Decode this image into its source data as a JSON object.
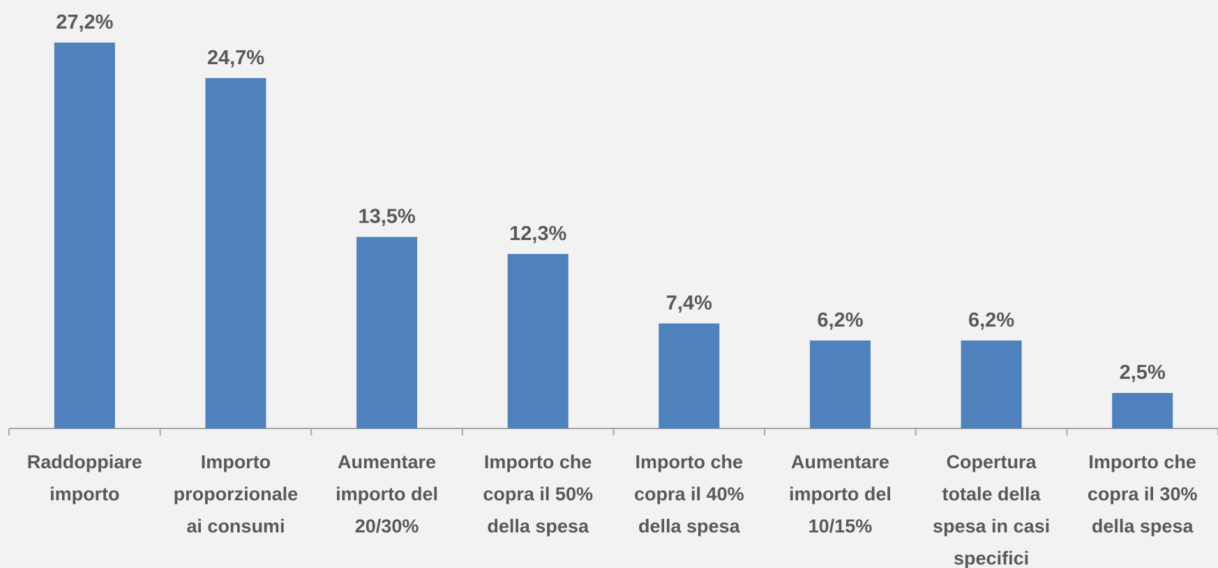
{
  "chart_data": {
    "type": "bar",
    "categories": [
      "Raddoppiare importo",
      "Importo proporzionale ai consumi",
      "Aumentare importo del 20/30%",
      "Importo che copra il 50% della spesa",
      "Importo che copra il 40% della spesa",
      "Aumentare importo del 10/15%",
      "Copertura totale della spesa in casi specifici",
      "Importo che copra il 30% della spesa"
    ],
    "values": [
      27.2,
      24.7,
      13.5,
      12.3,
      7.4,
      6.2,
      6.2,
      2.5
    ],
    "value_labels": [
      "27,2%",
      "24,7%",
      "13,5%",
      "12,3%",
      "7,4%",
      "6,2%",
      "6,2%",
      "2,5%"
    ],
    "color": "#4f81bd"
  }
}
